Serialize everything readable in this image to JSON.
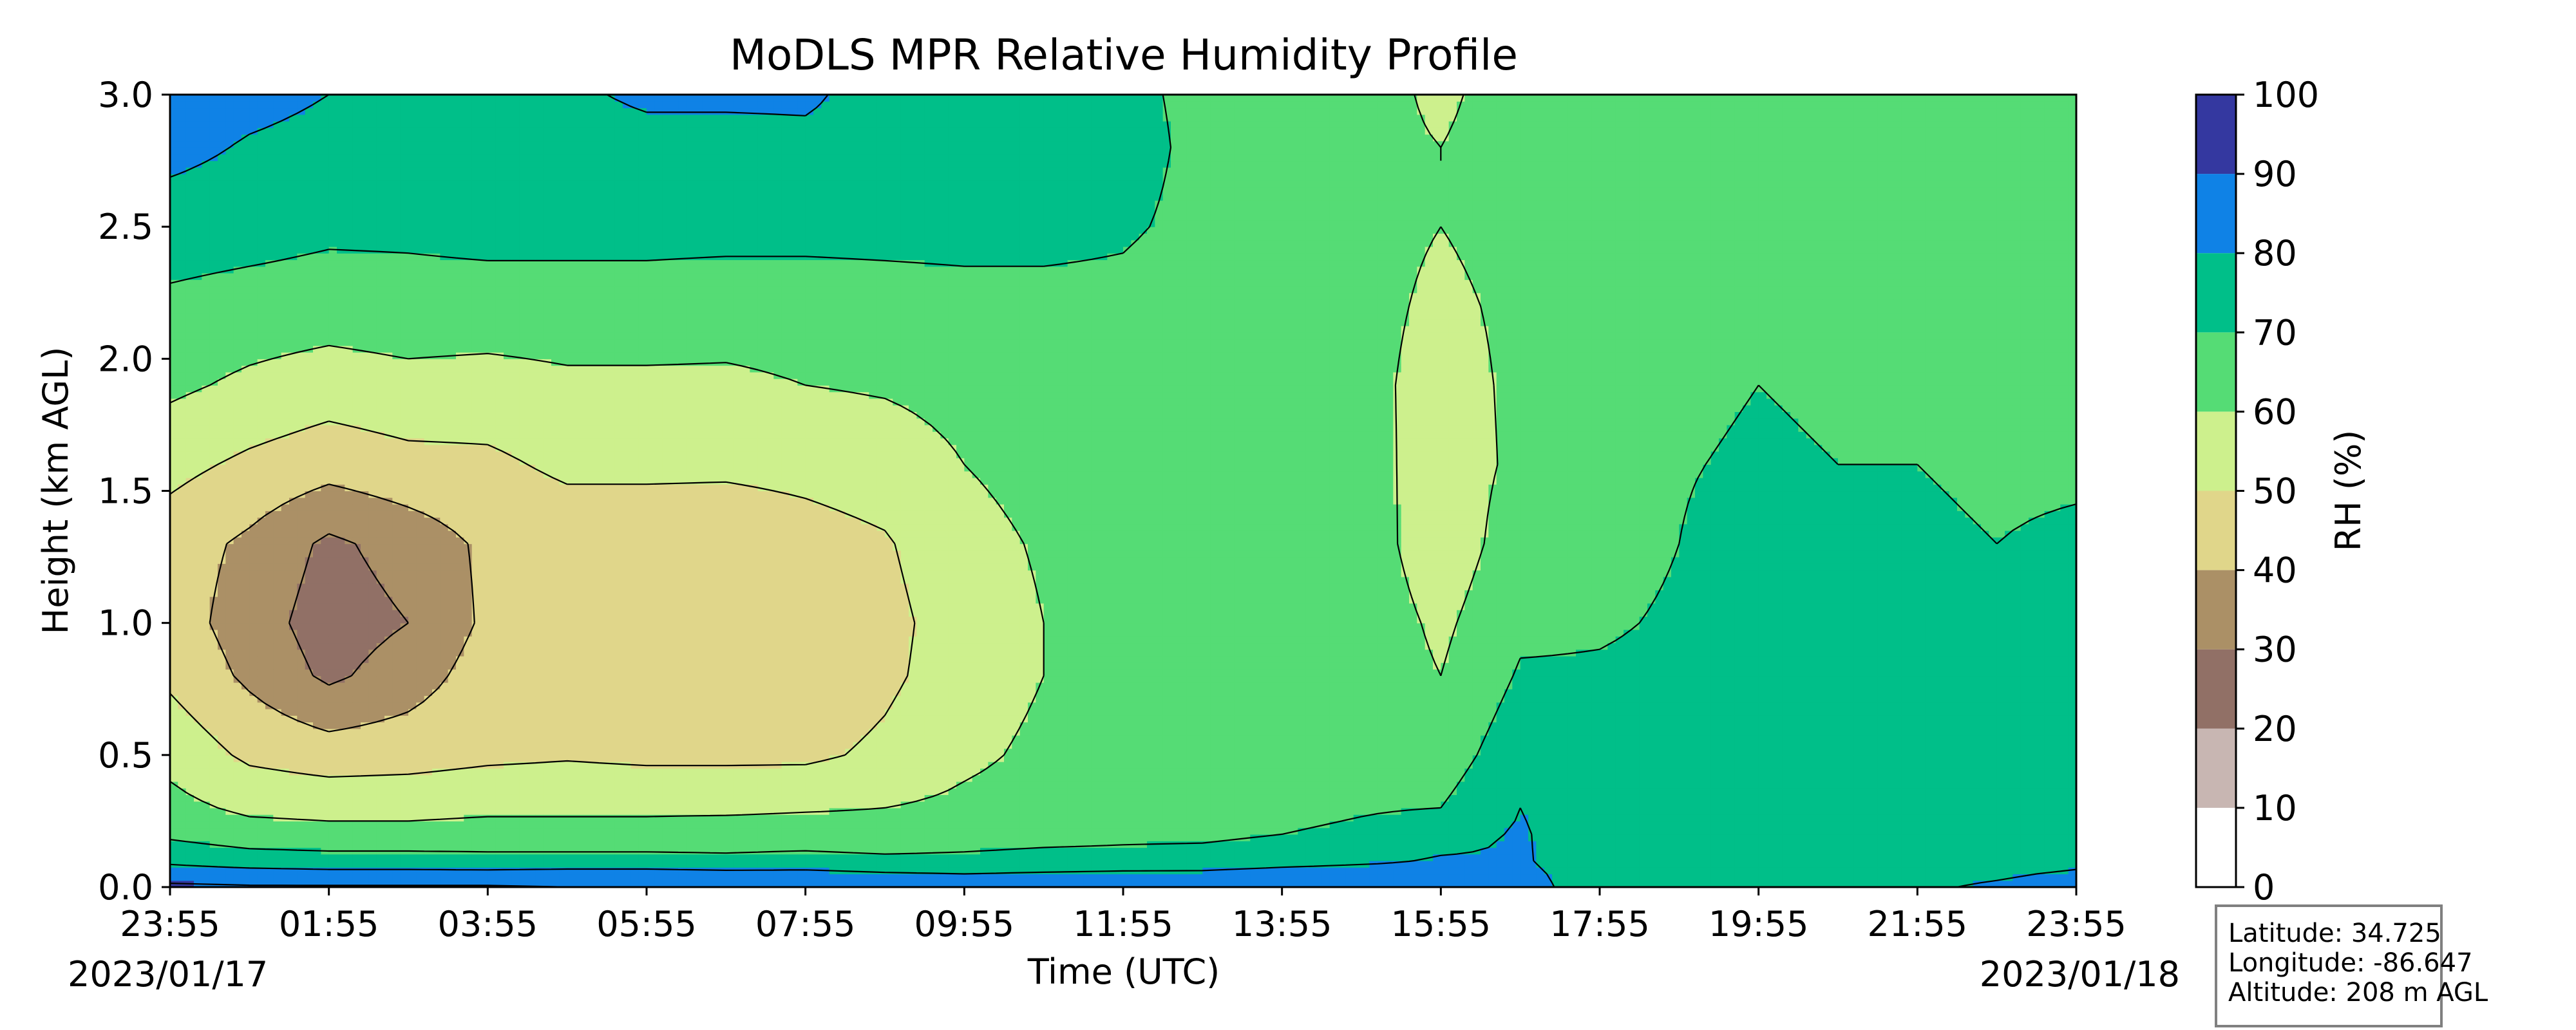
{
  "chart_data": {
    "type": "heatmap",
    "title": "MoDLS MPR Relative Humidity Profile",
    "xlabel": "Time (UTC)",
    "ylabel": "Height (km AGL)",
    "x_ticks": [
      "23:55",
      "01:55",
      "03:55",
      "05:55",
      "07:55",
      "09:55",
      "11:55",
      "13:55",
      "15:55",
      "17:55",
      "19:55",
      "21:55",
      "23:55"
    ],
    "x_hours_from_start": [
      0,
      2,
      4,
      6,
      8,
      10,
      12,
      14,
      16,
      18,
      20,
      22,
      24
    ],
    "xlim_hours": [
      0,
      24
    ],
    "y_ticks": [
      "0.0",
      "0.5",
      "1.0",
      "1.5",
      "2.0",
      "2.5",
      "3.0"
    ],
    "ylim": [
      0,
      3
    ],
    "start_date": "2023/01/17",
    "end_date": "2023/01/18",
    "colorbar": {
      "label": "RH (%)",
      "ticks": [
        "0",
        "10",
        "20",
        "30",
        "40",
        "50",
        "60",
        "70",
        "80",
        "90",
        "100"
      ],
      "levels": [
        0,
        10,
        20,
        30,
        40,
        50,
        60,
        70,
        80,
        90,
        100
      ],
      "colors": [
        "#ffffff",
        "#c8b6b2",
        "#917066",
        "#ab9066",
        "#e0d68a",
        "#cdf08d",
        "#55dc75",
        "#00bf89",
        "#0f82e6",
        "#3438a0"
      ]
    },
    "rh_grid_hours": [
      0,
      1,
      2,
      3,
      4,
      5,
      6,
      7,
      8,
      9,
      10,
      11,
      12,
      13,
      14,
      15,
      16,
      17,
      18,
      19,
      20,
      21,
      22,
      23,
      24
    ],
    "rh_grid_heights_km": [
      0,
      0.05,
      0.1,
      0.2,
      0.3,
      0.5,
      0.8,
      1.0,
      1.3,
      1.6,
      1.9,
      2.2,
      2.5,
      2.8,
      3.0
    ],
    "rh_percent": [
      [
        92,
        85,
        78,
        68,
        63,
        57,
        48,
        45,
        45,
        53,
        62,
        68,
        75,
        83,
        85
      ],
      [
        91,
        84,
        75,
        64,
        58,
        48,
        38,
        35,
        38,
        48,
        58,
        66,
        74,
        79,
        83
      ],
      [
        91,
        83,
        74,
        63,
        57,
        45,
        28,
        25,
        28,
        44,
        55,
        65,
        72,
        77,
        80
      ],
      [
        91,
        83,
        74,
        63,
        57,
        46,
        35,
        30,
        34,
        47,
        57,
        66,
        72,
        74,
        74
      ],
      [
        91,
        83,
        73,
        64,
        58,
        48,
        45,
        42,
        42,
        48,
        56,
        66,
        73,
        75,
        76
      ],
      [
        90,
        84,
        73,
        64,
        58,
        49,
        47,
        44,
        44,
        52,
        58,
        66,
        73,
        75,
        78
      ],
      [
        90,
        84,
        73,
        64,
        58,
        48,
        45,
        45,
        44,
        52,
        58,
        66,
        73,
        76,
        82
      ],
      [
        89,
        83,
        72,
        65,
        58,
        48,
        44,
        43,
        43,
        52,
        58,
        65,
        73,
        76,
        82
      ],
      [
        89,
        83,
        73,
        65,
        59,
        48,
        43,
        44,
        46,
        53,
        60,
        65,
        73,
        77,
        82
      ],
      [
        86,
        81,
        72,
        64,
        60,
        52,
        48,
        47,
        49,
        55,
        61,
        66,
        73,
        76,
        75
      ],
      [
        84,
        80,
        72,
        66,
        62,
        58,
        55,
        55,
        57,
        60,
        63,
        67,
        73,
        74,
        74
      ],
      [
        85,
        81,
        73,
        67,
        64,
        62,
        60,
        60,
        61,
        63,
        64,
        68,
        72,
        73,
        73
      ],
      [
        85,
        82,
        73,
        68,
        64,
        63,
        62,
        62,
        62,
        63,
        65,
        68,
        71,
        73,
        72
      ],
      [
        85,
        82,
        74,
        68,
        66,
        64,
        63,
        63,
        63,
        64,
        64,
        66,
        68,
        68,
        68
      ],
      [
        86,
        84,
        76,
        70,
        67,
        65,
        64,
        64,
        64,
        64,
        64,
        64,
        65,
        66,
        66
      ],
      [
        88,
        85,
        78,
        72,
        69,
        67,
        66,
        66,
        65,
        64,
        63,
        63,
        63,
        63,
        64
      ],
      [
        85,
        83,
        81,
        76,
        70,
        65,
        60,
        58,
        54,
        55,
        56,
        58,
        60,
        60,
        58
      ],
      [
        83,
        82,
        81,
        81,
        80,
        76,
        71,
        68,
        65,
        62,
        62,
        62,
        63,
        65,
        65
      ],
      [
        76,
        76,
        75,
        74,
        74,
        73,
        71,
        69,
        67,
        66,
        65,
        64,
        64,
        64,
        64
      ],
      [
        75,
        74,
        74,
        74,
        74,
        73,
        72,
        71,
        70,
        69,
        67,
        66,
        65,
        65,
        64
      ],
      [
        76,
        76,
        76,
        76,
        76,
        76,
        78,
        80,
        76,
        72,
        70,
        69,
        68,
        66,
        65
      ],
      [
        77,
        76,
        75,
        74,
        74,
        73,
        72,
        72,
        71,
        70,
        68,
        66,
        65,
        65,
        64
      ],
      [
        79,
        78,
        76,
        75,
        74,
        73,
        72,
        71,
        71,
        70,
        67,
        64,
        64,
        64,
        64
      ],
      [
        81,
        79,
        76,
        74,
        73,
        72,
        71,
        71,
        70,
        69,
        66,
        64,
        64,
        64,
        65
      ],
      [
        83,
        81,
        78,
        76,
        74,
        73,
        72,
        71,
        71,
        69,
        66,
        64,
        64,
        64,
        64
      ]
    ]
  },
  "station_info": {
    "latitude": "Latitude: 34.725",
    "longitude": "Longitude: -86.647",
    "altitude": "Altitude: 208 m AGL"
  }
}
